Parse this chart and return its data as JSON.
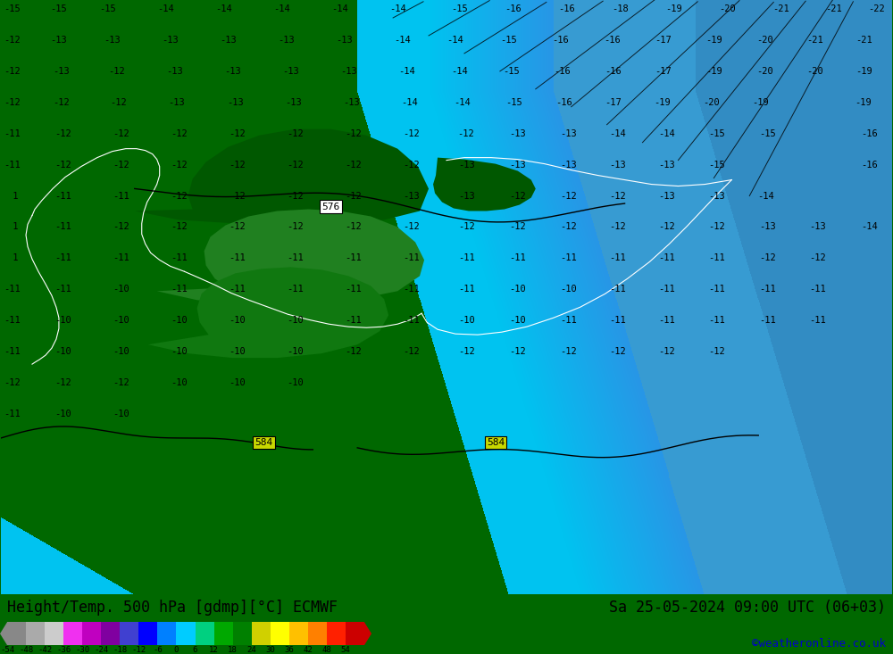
{
  "title_left": "Height/Temp. 500 hPa [gdmp][°C] ECMWF",
  "title_right": "Sa 25-05-2024 09:00 UTC (06+03)",
  "credit": "©weatheronline.co.uk",
  "colorbar_values": [
    -54,
    -48,
    -42,
    -36,
    -30,
    -24,
    -18,
    -12,
    -6,
    0,
    6,
    12,
    18,
    24,
    30,
    36,
    42,
    48,
    54
  ],
  "colorbar_colors": [
    "#808080",
    "#a0a0a0",
    "#c8c8c8",
    "#f000f0",
    "#c000c0",
    "#8000a0",
    "#4040d0",
    "#0000ff",
    "#0080ff",
    "#00d0ff",
    "#00ff80",
    "#00c000",
    "#008000",
    "#c8c800",
    "#ffff00",
    "#ffc000",
    "#ff8000",
    "#ff2000",
    "#cc0000"
  ],
  "fig_width": 10.0,
  "fig_height": 7.33,
  "dpi": 100,
  "map_bg": "#006800",
  "sea_cyan": "#00d0ff",
  "sea_light_cyan": "#80e8ff",
  "sea_blue": "#4090d0",
  "sea_mid_cyan": "#40c8f0",
  "bottom_green": "#007000"
}
